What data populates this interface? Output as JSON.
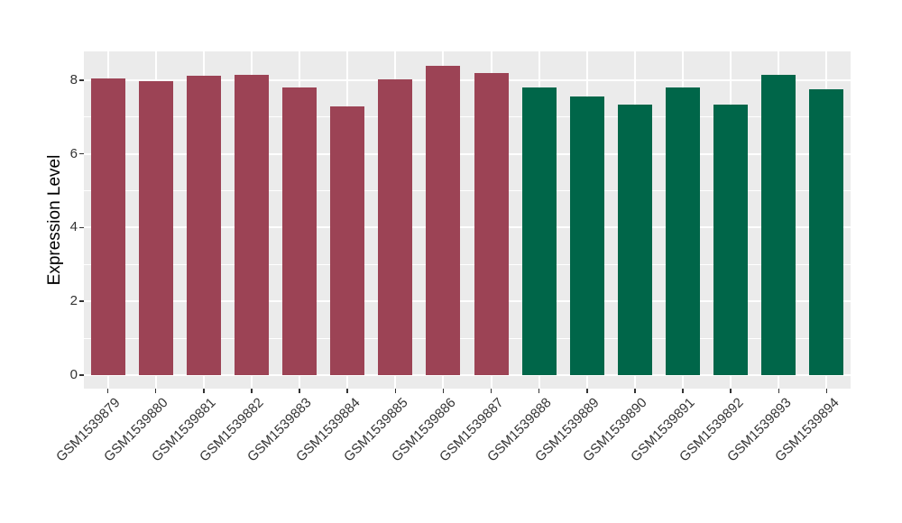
{
  "figure": {
    "background": "#FFFFFF",
    "panel_background": "#EBEBEB",
    "gridline_color": "#FFFFFF",
    "tick_mark_color": "#333333",
    "axis_text_color": "#333333",
    "axis_title_color": "#000000"
  },
  "chart_data": {
    "type": "bar",
    "title": "",
    "xlabel": "",
    "ylabel": "Expression Level",
    "ylim": [
      0,
      8.8
    ],
    "yticks": [
      0,
      2,
      4,
      6,
      8
    ],
    "yticks_minor": [
      1,
      3,
      5,
      7
    ],
    "grid": "on",
    "legend_position": "none",
    "categories": [
      "GSM1539879",
      "GSM1539880",
      "GSM1539881",
      "GSM1539882",
      "GSM1539883",
      "GSM1539884",
      "GSM1539885",
      "GSM1539886",
      "GSM1539887",
      "GSM1539888",
      "GSM1539889",
      "GSM1539890",
      "GSM1539891",
      "GSM1539892",
      "GSM1539893",
      "GSM1539894"
    ],
    "values": [
      8.05,
      7.97,
      8.12,
      8.13,
      7.81,
      7.28,
      8.02,
      8.38,
      8.18,
      7.81,
      7.56,
      7.33,
      7.79,
      7.33,
      8.15,
      7.74
    ],
    "groups": [
      "A",
      "A",
      "A",
      "A",
      "A",
      "A",
      "A",
      "A",
      "A",
      "B",
      "B",
      "B",
      "B",
      "B",
      "B",
      "B"
    ],
    "group_colors": {
      "A": "#9C4355",
      "B": "#006649"
    }
  }
}
